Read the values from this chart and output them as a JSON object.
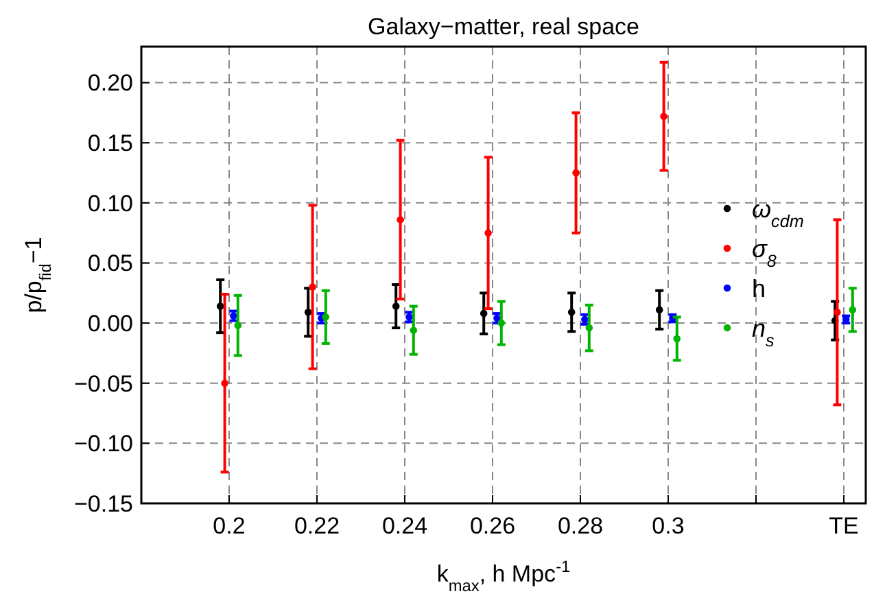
{
  "chart_data": {
    "type": "scatter",
    "title": "Galaxy−matter, real space",
    "xlabel": "k$_{max}$, h Mpc$^{-1}$",
    "ylabel": "p/p$_{fid}$−1",
    "xlim": [
      0.18,
      0.345
    ],
    "xticks": [
      0.2,
      0.22,
      0.24,
      0.26,
      0.28,
      0.3,
      {
        "value": 0.32,
        "label": null
      },
      {
        "value": 0.34,
        "label": "TE"
      }
    ],
    "ylim": [
      -0.15,
      0.23
    ],
    "yticks": [
      {
        "value": -0.15,
        "label": "−0.15"
      },
      {
        "value": -0.1,
        "label": "−0.10"
      },
      {
        "value": -0.05,
        "label": "−0.05"
      },
      {
        "value": 0,
        "label": "0.00"
      },
      {
        "value": 0.05,
        "label": "0.05"
      },
      {
        "value": 0.1,
        "label": "0.10"
      },
      {
        "value": 0.15,
        "label": "0.15"
      },
      {
        "value": 0.2,
        "label": "0.20"
      }
    ],
    "grid": true,
    "legend": "right",
    "marker": "circle",
    "series": [
      {
        "name": "ω$_{cdm}$",
        "color": "#000000",
        "x": [
          0.198,
          0.218,
          0.238,
          0.258,
          0.278,
          0.298,
          0.338
        ],
        "values": [
          0.014,
          0.009,
          0.014,
          0.008,
          0.009,
          0.011,
          0.002
        ],
        "errors": [
          0.022,
          0.02,
          0.018,
          0.017,
          0.016,
          0.016,
          0.016
        ]
      },
      {
        "name": "σ$_{8}$",
        "color": "#ff0000",
        "x": [
          0.199,
          0.219,
          0.239,
          0.259,
          0.279,
          0.299,
          0.3385
        ],
        "values": [
          -0.05,
          0.03,
          0.086,
          0.075,
          0.125,
          0.172,
          0.009
        ],
        "errors": [
          0.074,
          0.068,
          0.066,
          0.063,
          0.05,
          0.045,
          0.077
        ]
      },
      {
        "name": "h",
        "color": "#0000ff",
        "x": [
          0.201,
          0.221,
          0.241,
          0.261,
          0.281,
          0.301,
          0.3405
        ],
        "values": [
          0.006,
          0.004,
          0.005,
          0.004,
          0.003,
          0.004,
          0.003
        ],
        "errors": [
          0.004,
          0.004,
          0.004,
          0.004,
          0.004,
          0.003,
          0.003
        ]
      },
      {
        "name": "n$_{s}$",
        "color": "#00b400",
        "x": [
          0.202,
          0.222,
          0.242,
          0.262,
          0.282,
          0.302,
          0.342
        ],
        "values": [
          -0.002,
          0.005,
          -0.006,
          0.0,
          -0.004,
          -0.013,
          0.011
        ],
        "errors": [
          0.025,
          0.022,
          0.02,
          0.018,
          0.019,
          0.018,
          0.018
        ]
      }
    ]
  }
}
